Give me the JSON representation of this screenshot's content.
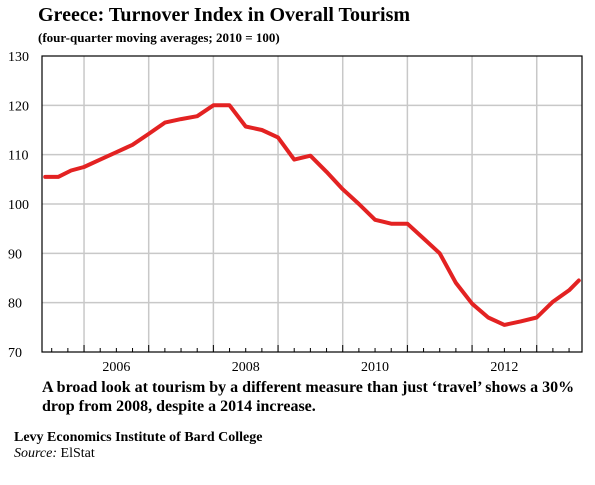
{
  "chart_data": {
    "type": "line",
    "title": "Greece: Turnover Index in Overall Tourism",
    "subtitle": "(four-quarter moving averages; 2010 = 100)",
    "xlabel": "",
    "ylabel": "",
    "ylim": [
      70,
      130
    ],
    "xlim": [
      2005.35,
      2013.7
    ],
    "yticks": [
      70,
      80,
      90,
      100,
      110,
      120,
      130
    ],
    "xtick_labels": [
      "2006",
      "2008",
      "2010",
      "2012"
    ],
    "grid": true,
    "legend": "none",
    "series": [
      {
        "color": "#e32222",
        "x": [
          2005.4,
          2005.6,
          2005.8,
          2006.0,
          2006.25,
          2006.5,
          2006.75,
          2007.0,
          2007.25,
          2007.5,
          2007.75,
          2008.0,
          2008.25,
          2008.5,
          2008.75,
          2009.0,
          2009.25,
          2009.5,
          2009.75,
          2010.0,
          2010.25,
          2010.5,
          2010.75,
          2011.0,
          2011.25,
          2011.5,
          2011.75,
          2012.0,
          2012.25,
          2012.5,
          2012.75,
          2013.0,
          2013.25,
          2013.5,
          2013.65
        ],
        "y": [
          105.5,
          105.5,
          106.8,
          107.5,
          109.0,
          110.5,
          112.0,
          114.2,
          116.5,
          117.2,
          117.8,
          120.0,
          120.0,
          115.7,
          115.0,
          113.5,
          109.0,
          109.8,
          106.5,
          103.0,
          100.0,
          96.8,
          96.0,
          96.0,
          93.0,
          90.0,
          84.0,
          79.8,
          77.0,
          75.5,
          76.2,
          77.0,
          80.2,
          82.5,
          84.5
        ]
      }
    ]
  },
  "caption": "A broad look at tourism by a different measure than just ‘travel’ shows a 30% drop from 2008, despite a 2014 increase.",
  "credit": "Levy Economics Institute of Bard College",
  "source_label": "Source:",
  "source_value": "ElStat"
}
